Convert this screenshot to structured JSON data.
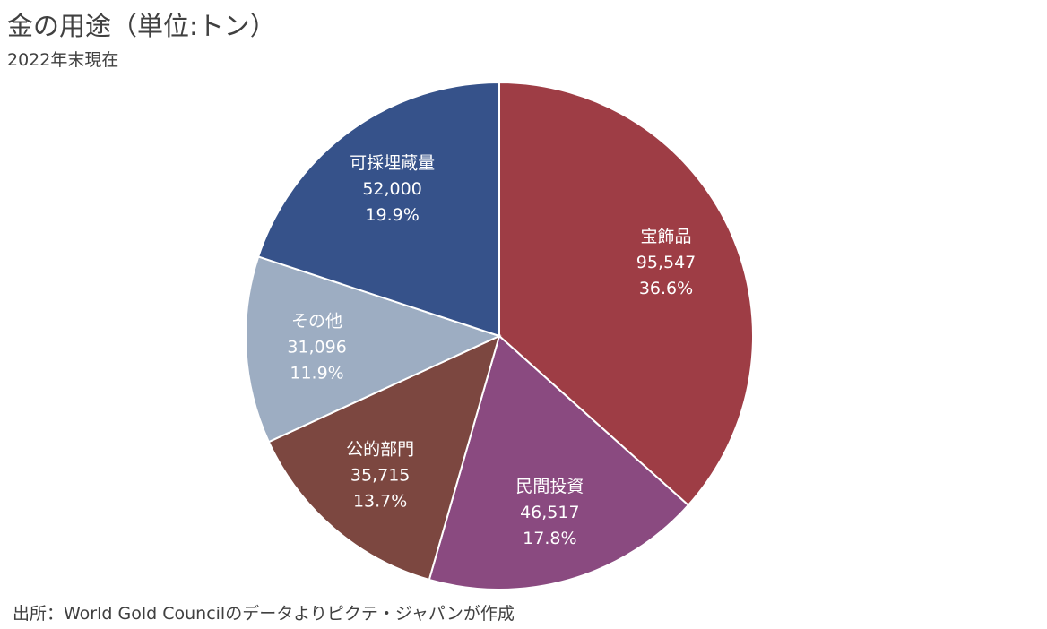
{
  "chart_data": {
    "type": "pie",
    "title": "金の用途（単位:トン）",
    "subtitle": "2022年末現在",
    "source": "出所：World Gold Councilのデータよりピクテ・ジャパンが作成",
    "start_angle": "12 o'clock, clockwise",
    "slices": [
      {
        "label": "宝飾品",
        "value": 95547,
        "value_label": "95,547",
        "percent_label": "36.6%",
        "color": "#9E3D45"
      },
      {
        "label": "民間投資",
        "value": 46517,
        "value_label": "46,517",
        "percent_label": "17.8%",
        "color": "#8A4A80"
      },
      {
        "label": "公的部門",
        "value": 35715,
        "value_label": "35,715",
        "percent_label": "13.7%",
        "color": "#7C4740"
      },
      {
        "label": "その他",
        "value": 31096,
        "value_label": "31,096",
        "percent_label": "11.9%",
        "color": "#9DADC2"
      },
      {
        "label": "可採埋蔵量",
        "value": 52000,
        "value_label": "52,000",
        "percent_label": "19.9%",
        "color": "#36528A"
      }
    ]
  }
}
